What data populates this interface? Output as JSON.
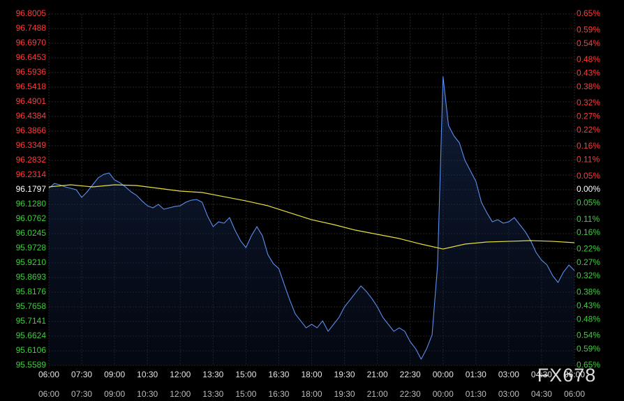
{
  "chart_data": {
    "type": "line",
    "watermark": "FX678",
    "grid": true,
    "label_colors": {
      "up": "#ff3b3b",
      "flat": "#ffffff",
      "down": "#3ecf3e"
    },
    "xlim": [
      0,
      1440
    ],
    "xticks": [
      {
        "value": 0,
        "label": "06:00"
      },
      {
        "value": 90,
        "label": "07:30"
      },
      {
        "value": 180,
        "label": "09:00"
      },
      {
        "value": 270,
        "label": "10:30"
      },
      {
        "value": 360,
        "label": "12:00"
      },
      {
        "value": 450,
        "label": "13:30"
      },
      {
        "value": 540,
        "label": "15:00"
      },
      {
        "value": 630,
        "label": "16:30"
      },
      {
        "value": 720,
        "label": "18:00"
      },
      {
        "value": 810,
        "label": "19:30"
      },
      {
        "value": 900,
        "label": "21:00"
      },
      {
        "value": 990,
        "label": "22:30"
      },
      {
        "value": 1080,
        "label": "00:00"
      },
      {
        "value": 1170,
        "label": "01:30"
      },
      {
        "value": 1260,
        "label": "03:00"
      },
      {
        "value": 1350,
        "label": "04:30"
      },
      {
        "value": 1440,
        "label": "06:00"
      }
    ],
    "ylim": [
      95.5589,
      96.8005
    ],
    "yticks": [
      96.8005,
      96.7488,
      {
        "value": 96.697,
        "label": "96.6970"
      },
      96.6453,
      96.5936,
      96.5418,
      96.4901,
      96.4384,
      96.3866,
      96.3349,
      96.2832,
      96.2314,
      96.1797,
      {
        "value": 96.128,
        "label": "96.1280"
      },
      96.0762,
      96.0245,
      95.9728,
      {
        "value": 95.921,
        "label": "95.9210"
      },
      95.8693,
      95.8176,
      95.7658,
      95.7141,
      95.6624,
      95.6106,
      95.5589
    ],
    "y2lim": [
      -0.65,
      0.65
    ],
    "y2ticks": [
      {
        "value": 0.65,
        "label": "0.65%"
      },
      {
        "value": 0.59,
        "label": "0.59%"
      },
      {
        "value": 0.54,
        "label": "0.54%"
      },
      {
        "value": 0.48,
        "label": "0.48%"
      },
      {
        "value": 0.43,
        "label": "0.43%"
      },
      {
        "value": 0.38,
        "label": "0.38%"
      },
      {
        "value": 0.32,
        "label": "0.32%"
      },
      {
        "value": 0.27,
        "label": "0.27%"
      },
      {
        "value": 0.22,
        "label": "0.22%"
      },
      {
        "value": 0.16,
        "label": "0.16%"
      },
      {
        "value": 0.11,
        "label": "0.11%"
      },
      {
        "value": 0.05,
        "label": "0.05%"
      },
      {
        "value": 0,
        "label": "0.00%"
      },
      {
        "value": -0.05,
        "label": "0.05%"
      },
      {
        "value": -0.11,
        "label": "0.11%"
      },
      {
        "value": -0.16,
        "label": "0.16%"
      },
      {
        "value": -0.22,
        "label": "0.22%"
      },
      {
        "value": -0.27,
        "label": "0.27%"
      },
      {
        "value": -0.32,
        "label": "0.32%"
      },
      {
        "value": -0.38,
        "label": "0.38%"
      },
      {
        "value": -0.43,
        "label": "0.43%"
      },
      {
        "value": -0.48,
        "label": "0.48%"
      },
      {
        "value": -0.54,
        "label": "0.54%"
      },
      {
        "value": -0.59,
        "label": "0.59%"
      },
      {
        "value": -0.65,
        "label": "0.65%"
      }
    ],
    "series": [
      {
        "color": "#5b8ff0",
        "x": [
          0,
          15,
          30,
          45,
          60,
          75,
          90,
          105,
          120,
          135,
          150,
          165,
          180,
          195,
          210,
          225,
          240,
          255,
          270,
          285,
          300,
          315,
          330,
          345,
          360,
          375,
          390,
          405,
          420,
          435,
          450,
          465,
          480,
          495,
          510,
          525,
          540,
          555,
          570,
          585,
          600,
          615,
          630,
          645,
          660,
          675,
          690,
          705,
          720,
          735,
          750,
          765,
          780,
          795,
          810,
          825,
          840,
          855,
          870,
          885,
          900,
          915,
          930,
          945,
          960,
          975,
          990,
          1005,
          1020,
          1035,
          1050,
          1065,
          1080,
          1095,
          1110,
          1125,
          1140,
          1155,
          1170,
          1185,
          1200,
          1215,
          1230,
          1245,
          1260,
          1275,
          1290,
          1305,
          1320,
          1335,
          1350,
          1365,
          1380,
          1395,
          1410,
          1425,
          1440
        ],
        "values": [
          96.1846,
          96.2018,
          96.1969,
          96.1895,
          96.1846,
          96.1796,
          96.1525,
          96.1723,
          96.1969,
          96.2215,
          96.2338,
          96.2388,
          96.2141,
          96.2043,
          96.1895,
          96.1723,
          96.1599,
          96.1402,
          96.123,
          96.1156,
          96.1279,
          96.1107,
          96.1156,
          96.1205,
          96.123,
          96.1353,
          96.1427,
          96.1452,
          96.1353,
          96.086,
          96.0491,
          96.0663,
          96.0614,
          96.0811,
          96.0368,
          95.9998,
          95.9752,
          96.017,
          96.0491,
          96.017,
          95.9505,
          95.9185,
          95.9012,
          95.8446,
          95.7904,
          95.7411,
          95.7165,
          95.6918,
          95.7042,
          95.6918,
          95.7165,
          95.6795,
          95.7042,
          95.7288,
          95.7658,
          95.7904,
          95.815,
          95.8397,
          95.8199,
          95.7953,
          95.7658,
          95.7288,
          95.7042,
          95.6795,
          95.6918,
          95.6795,
          95.6426,
          95.6179,
          95.581,
          95.6179,
          95.6672,
          95.9136,
          96.5788,
          96.4063,
          96.3694,
          96.3447,
          96.2831,
          96.2462,
          96.2092,
          96.1353,
          96.0983,
          96.0663,
          96.0737,
          96.0614,
          96.0663,
          96.0811,
          96.0565,
          96.0318,
          95.9998,
          95.9579,
          95.9308,
          95.9136,
          95.8766,
          95.852,
          95.8889,
          95.9136,
          95.8939
        ]
      },
      {
        "color": "#e8e03a",
        "x": [
          0,
          60,
          120,
          180,
          240,
          300,
          360,
          420,
          480,
          540,
          600,
          660,
          720,
          780,
          840,
          900,
          960,
          1020,
          1080,
          1140,
          1200,
          1260,
          1320,
          1380,
          1440
        ],
        "values": [
          96.1895,
          96.1969,
          96.1895,
          96.1969,
          96.1944,
          96.1846,
          96.1747,
          96.1698,
          96.155,
          96.1402,
          96.123,
          96.0983,
          96.0737,
          96.0565,
          96.0368,
          96.022,
          96.0072,
          95.9875,
          95.9702,
          95.9875,
          95.9949,
          95.9973,
          95.9998,
          95.9973,
          95.9924
        ]
      }
    ]
  }
}
